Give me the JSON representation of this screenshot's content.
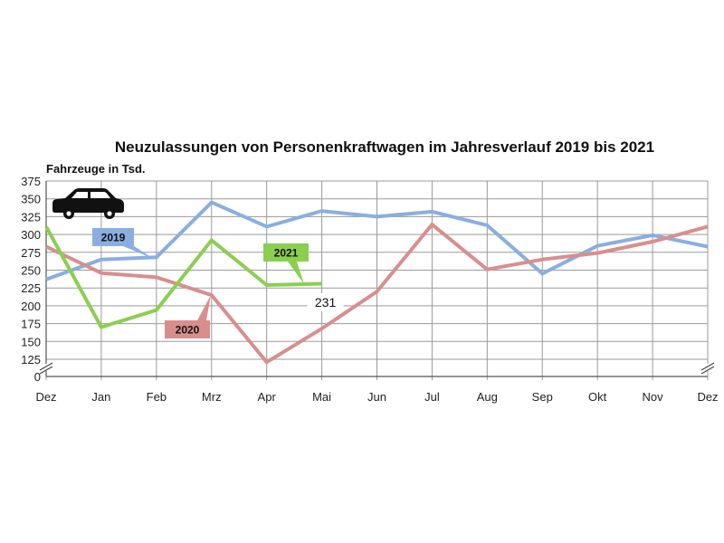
{
  "chart_data": {
    "type": "line",
    "title": "Neuzulassungen von Personenkraftwagen im Jahresverlauf 2019 bis 2021",
    "ylabel": "Fahrzeuge in Tsd.",
    "xlabel": "",
    "categories": [
      "Dez",
      "Jan",
      "Feb",
      "Mrz",
      "Apr",
      "Mai",
      "Jun",
      "Jul",
      "Aug",
      "Sep",
      "Okt",
      "Nov",
      "Dez"
    ],
    "yticks": [
      0,
      125,
      150,
      175,
      200,
      225,
      250,
      275,
      300,
      325,
      350,
      375
    ],
    "ylim": [
      125,
      375
    ],
    "axis_break": true,
    "grid": true,
    "series": [
      {
        "name": "2019",
        "color": "#8aaee0",
        "values": [
          237,
          265,
          268,
          345,
          311,
          333,
          325,
          332,
          313,
          245,
          284,
          299,
          283
        ]
      },
      {
        "name": "2020",
        "color": "#d98e8e",
        "values": [
          283,
          246,
          240,
          215,
          121,
          168,
          220,
          314,
          251,
          265,
          274,
          290,
          311
        ]
      },
      {
        "name": "2021",
        "color": "#8bcf4f",
        "values": [
          311,
          170,
          194,
          292,
          229,
          231,
          null,
          null,
          null,
          null,
          null,
          null,
          null
        ]
      }
    ],
    "annotations": [
      {
        "text": "231",
        "series": "2021",
        "category_index": 5
      }
    ]
  },
  "icons": {
    "car": "car-icon"
  }
}
